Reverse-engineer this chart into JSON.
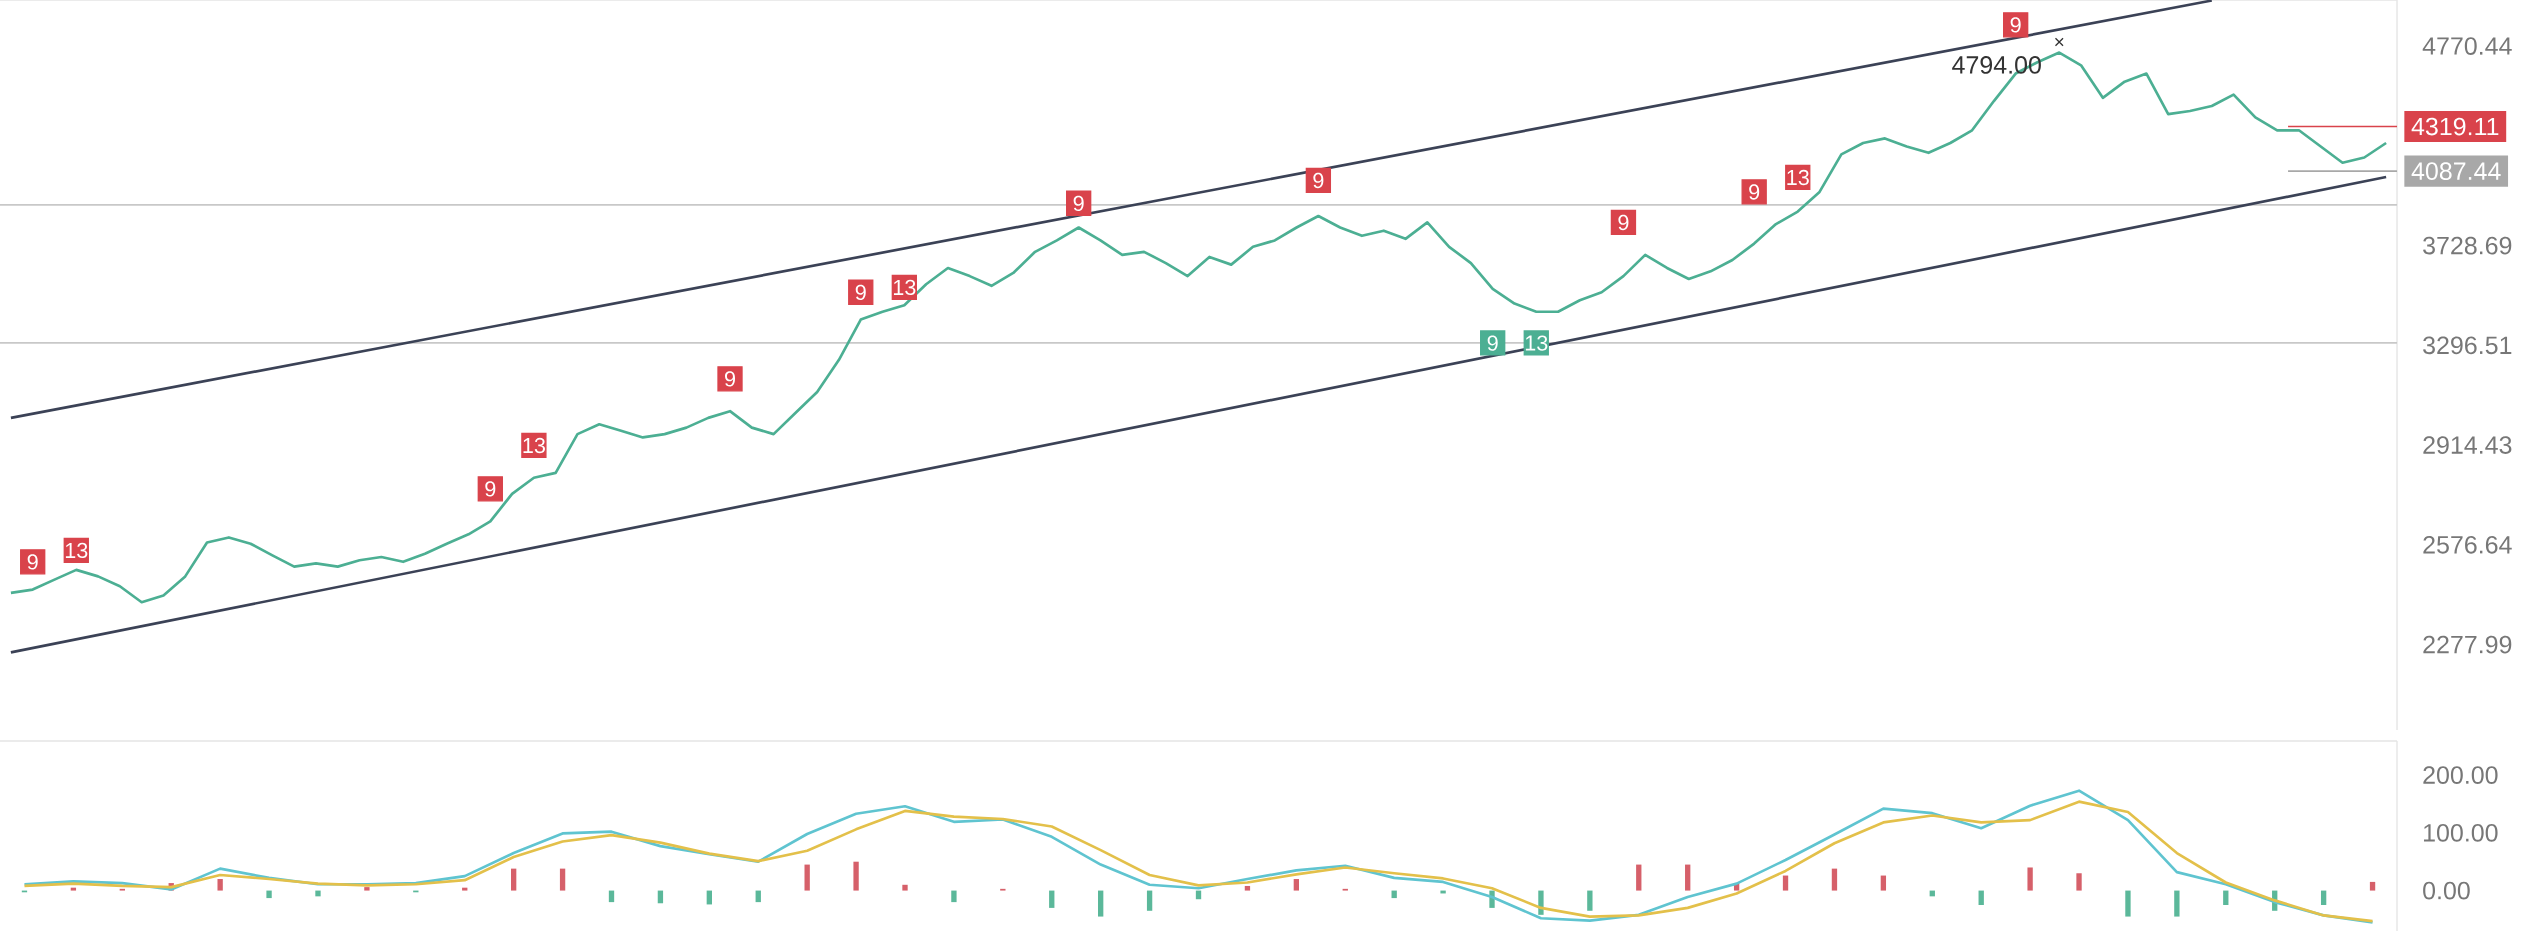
{
  "chart_data": [
    {
      "type": "line",
      "log": "y",
      "ylim": [
        2050,
        5050
      ],
      "tick_labels": "y",
      "categories": [
        null,
        null,
        null,
        null,
        null,
        null,
        null,
        null,
        null,
        null,
        null,
        null,
        null,
        null,
        null,
        null,
        null,
        null,
        null,
        null,
        null,
        null,
        null,
        null,
        null,
        null,
        null,
        null,
        null,
        null,
        null,
        null,
        null,
        null,
        null,
        null,
        null,
        null,
        null,
        null,
        null,
        null,
        null,
        null,
        null,
        null,
        null,
        null,
        null,
        null,
        null,
        null,
        null,
        null,
        null,
        null,
        null,
        null,
        null,
        null,
        null,
        null,
        null,
        null,
        null,
        null,
        null,
        null,
        null,
        null,
        null,
        null,
        null,
        null,
        null,
        null,
        null,
        null,
        null,
        null,
        null,
        null,
        null,
        null,
        null,
        null,
        null,
        null,
        null,
        null,
        null,
        null,
        null,
        null,
        null,
        null,
        null,
        null,
        null,
        null,
        null,
        null,
        null,
        null,
        null,
        null,
        null,
        null,
        null,
        null
      ],
      "yticks": [
        2277.99,
        2576.64,
        2914.43,
        3296.51,
        3728.69,
        4770.44
      ],
      "series": [
        {
          "color": "#4caf93",
          "values": [
            2428,
            2438,
            2468,
            2498,
            2478,
            2448,
            2400,
            2420,
            2478,
            2584,
            2600,
            2580,
            2543,
            2508,
            2518,
            2508,
            2528,
            2538,
            2523,
            2548,
            2580,
            2610,
            2652,
            2744,
            2799,
            2816,
            2954,
            2990,
            2966,
            2942,
            2954,
            2978,
            3014,
            3039,
            2978,
            2954,
            3032,
            3112,
            3238,
            3403,
            3436,
            3464,
            3555,
            3627,
            3591,
            3548,
            3605,
            3700,
            3753,
            3813,
            3753,
            3686,
            3700,
            3649,
            3591,
            3677,
            3642,
            3723,
            3753,
            3813,
            3868,
            3813,
            3774,
            3798,
            3760,
            3837,
            3723,
            3649,
            3535,
            3471,
            3436,
            3436,
            3485,
            3520,
            3591,
            3686,
            3627,
            3578,
            3612,
            3663,
            3738,
            3829,
            3889,
            3985,
            4173,
            4232,
            4256,
            4214,
            4181,
            4232,
            4299,
            4457,
            4611,
            4676,
            4732,
            4658,
            4475,
            4565,
            4611,
            4386,
            4403,
            4430,
            4493,
            4368,
            4299,
            4299,
            4214,
            4130,
            4157,
            4232
          ]
        },
        {
          "color": "#3b4256",
          "values": [
            3014,
            null,
            null,
            null,
            null,
            null,
            null,
            null,
            null,
            null,
            null,
            null,
            null,
            null,
            null,
            null,
            null,
            null,
            null,
            null,
            null,
            null,
            null,
            null,
            null,
            null,
            null,
            null,
            null,
            null,
            null,
            null,
            null,
            null,
            null,
            null,
            null,
            null,
            null,
            null,
            null,
            null,
            null,
            null,
            null,
            null,
            null,
            null,
            null,
            null,
            null,
            null,
            null,
            null,
            null,
            null,
            null,
            null,
            null,
            null,
            null,
            null,
            null,
            null,
            null,
            null,
            null,
            null,
            null,
            null,
            null,
            null,
            null,
            null,
            null,
            null,
            null,
            null,
            null,
            null,
            null,
            null,
            null,
            null,
            null,
            null,
            null,
            null,
            null,
            null,
            null,
            null,
            null,
            null,
            null,
            null,
            null,
            null,
            null,
            null,
            null,
            5046,
            null,
            null,
            null,
            null,
            null,
            null,
            null,
            null
          ]
        },
        {
          "color": "#3b4256",
          "values": [
            2256,
            null,
            null,
            null,
            null,
            null,
            null,
            null,
            null,
            null,
            null,
            null,
            null,
            null,
            null,
            null,
            null,
            null,
            null,
            null,
            null,
            null,
            null,
            null,
            null,
            null,
            null,
            null,
            null,
            null,
            null,
            null,
            null,
            null,
            null,
            null,
            null,
            null,
            null,
            null,
            null,
            null,
            null,
            null,
            null,
            null,
            null,
            null,
            null,
            null,
            null,
            null,
            null,
            null,
            null,
            null,
            null,
            null,
            null,
            null,
            null,
            null,
            null,
            null,
            null,
            null,
            null,
            null,
            null,
            null,
            null,
            null,
            null,
            null,
            null,
            null,
            null,
            null,
            null,
            null,
            null,
            null,
            null,
            null,
            null,
            null,
            null,
            null,
            null,
            null,
            null,
            null,
            null,
            null,
            null,
            null,
            null,
            null,
            null,
            null,
            null,
            null,
            null,
            null,
            null,
            null,
            null,
            null,
            null,
            4058
          ]
        },
        {
          "type": "scatter",
          "color": "#d9434b",
          "marker": "square",
          "values": [
            null,
            2523,
            null,
            2559,
            null,
            null,
            null,
            null,
            null,
            null,
            null,
            null,
            null,
            null,
            null,
            null,
            null,
            null,
            null,
            null,
            null,
            null,
            2761,
            null,
            2913,
            null,
            null,
            null,
            null,
            null,
            null,
            null,
            null,
            3163,
            null,
            null,
            null,
            null,
            null,
            3520,
            null,
            3541,
            null,
            null,
            null,
            null,
            null,
            null,
            null,
            3929,
            null,
            null,
            null,
            null,
            null,
            null,
            null,
            null,
            null,
            null,
            4041,
            null,
            null,
            null,
            null,
            null,
            null,
            null,
            null,
            null,
            null,
            null,
            null,
            null,
            3837,
            null,
            null,
            null,
            null,
            null,
            3985,
            null,
            4056,
            null,
            null,
            null,
            null,
            null,
            null,
            null,
            null,
            null,
            4897,
            null,
            null,
            null,
            null,
            null,
            null,
            null,
            null,
            null,
            null,
            null,
            null,
            null,
            null,
            null,
            null,
            null
          ]
        },
        {
          "type": "scatter",
          "color": "#4caf93",
          "marker": "square",
          "values": [
            null,
            null,
            null,
            null,
            null,
            null,
            null,
            null,
            null,
            null,
            null,
            null,
            null,
            null,
            null,
            null,
            null,
            null,
            null,
            null,
            null,
            null,
            null,
            null,
            null,
            null,
            null,
            null,
            null,
            null,
            null,
            null,
            null,
            null,
            null,
            null,
            null,
            null,
            null,
            null,
            null,
            null,
            null,
            null,
            null,
            null,
            null,
            null,
            null,
            null,
            null,
            null,
            null,
            null,
            null,
            null,
            null,
            null,
            null,
            null,
            null,
            null,
            null,
            null,
            null,
            null,
            null,
            null,
            3306,
            null,
            3306,
            null,
            null,
            null,
            null,
            null,
            null,
            null,
            null,
            null,
            null,
            null,
            null,
            null,
            null,
            null,
            null,
            null,
            null,
            null,
            null,
            null,
            null,
            null,
            null,
            null,
            null,
            null,
            null,
            null,
            null,
            null,
            null,
            null,
            null,
            null,
            null,
            null,
            null,
            null
          ]
        },
        {
          "type": "scatter",
          "color": "#333333",
          "marker": "cross",
          "values": [
            null,
            null,
            null,
            null,
            null,
            null,
            null,
            null,
            null,
            null,
            null,
            null,
            null,
            null,
            null,
            null,
            null,
            null,
            null,
            null,
            null,
            null,
            null,
            null,
            null,
            null,
            null,
            null,
            null,
            null,
            null,
            null,
            null,
            null,
            null,
            null,
            null,
            null,
            null,
            null,
            null,
            null,
            null,
            null,
            null,
            null,
            null,
            null,
            null,
            null,
            null,
            null,
            null,
            null,
            null,
            null,
            null,
            null,
            null,
            null,
            null,
            null,
            null,
            null,
            null,
            null,
            null,
            null,
            null,
            null,
            null,
            null,
            null,
            null,
            null,
            null,
            null,
            null,
            null,
            null,
            null,
            null,
            null,
            null,
            null,
            null,
            null,
            null,
            null,
            null,
            null,
            null,
            null,
            null,
            4794,
            null,
            null,
            null,
            null,
            null,
            null,
            null,
            null,
            null,
            null,
            null,
            null,
            null,
            null,
            null
          ]
        }
      ],
      "annotations": [
        "9",
        "13",
        "9",
        "13",
        "9",
        "9",
        "13",
        "9",
        "9",
        "9",
        "9",
        "13",
        "9",
        "9",
        "13",
        "4794.00"
      ],
      "ref_lines": [
        {
          "axis": "y",
          "value": 3921,
          "color": "#c8c8c8"
        },
        {
          "axis": "y",
          "value": 3306,
          "color": "#c8c8c8"
        },
        {
          "axis": "y",
          "value": 4087.44,
          "label": "4087.44",
          "color": "#a8a8a8"
        },
        {
          "axis": "y",
          "value": 4319.11,
          "label": "4319.11",
          "color": "#d9434b"
        }
      ]
    },
    {
      "type": "bar",
      "ylim": [
        -70,
        259
      ],
      "tick_labels": "y",
      "yticks": [
        {
          "value": 0,
          "label": "0.00"
        },
        {
          "value": 100,
          "label": "100.00"
        },
        {
          "value": 200,
          "label": "200.00"
        }
      ],
      "categories": [
        null,
        null,
        null,
        null,
        null,
        null,
        null,
        null,
        null,
        null,
        null,
        null,
        null,
        null,
        null,
        null,
        null,
        null,
        null,
        null,
        null,
        null,
        null,
        null,
        null,
        null,
        null,
        null,
        null,
        null,
        null,
        null,
        null,
        null,
        null,
        null,
        null,
        null,
        null,
        null,
        null,
        null,
        null,
        null,
        null,
        null,
        null,
        null,
        null
      ],
      "series": [
        {
          "type": "bar",
          "values": [
            -3,
            5,
            3,
            13,
            20,
            -13,
            -10,
            6,
            -3,
            5,
            38,
            38,
            -20,
            -22,
            -24,
            -20,
            45,
            50,
            10,
            -20,
            3,
            -30,
            -45,
            -35,
            -15,
            8,
            20,
            3,
            -13,
            -5,
            -30,
            -42,
            -35,
            45,
            45,
            13,
            26,
            38,
            26,
            -10,
            -25,
            40,
            30,
            -45,
            -45,
            -25,
            -35,
            -25,
            15
          ],
          "colors": [
            "#5bb89a",
            "#d6606a",
            "#d6606a",
            "#d6606a",
            "#d6606a",
            "#5bb89a",
            "#5bb89a",
            "#d6606a",
            "#5bb89a",
            "#d6606a",
            "#d6606a",
            "#d6606a",
            "#5bb89a",
            "#5bb89a",
            "#5bb89a",
            "#5bb89a",
            "#d6606a",
            "#d6606a",
            "#d6606a",
            "#5bb89a",
            "#d6606a",
            "#5bb89a",
            "#5bb89a",
            "#5bb89a",
            "#5bb89a",
            "#d6606a",
            "#d6606a",
            "#d6606a",
            "#5bb89a",
            "#5bb89a",
            "#5bb89a",
            "#5bb89a",
            "#5bb89a",
            "#d6606a",
            "#d6606a",
            "#d6606a",
            "#d6606a",
            "#d6606a",
            "#d6606a",
            "#5bb89a",
            "#5bb89a",
            "#d6606a",
            "#d6606a",
            "#5bb89a",
            "#5bb89a",
            "#5bb89a",
            "#5bb89a",
            "#5bb89a",
            "#d6606a"
          ]
        },
        {
          "type": "line",
          "color": "#5fc4d0",
          "values": [
            11,
            16,
            13,
            2,
            38,
            22,
            11,
            11,
            13,
            25,
            65,
            99,
            102,
            77,
            63,
            50,
            98,
            133,
            146,
            119,
            123,
            93,
            45,
            10,
            4,
            20,
            35,
            43,
            22,
            15,
            -11,
            -48,
            -52,
            -42,
            -11,
            12,
            53,
            97,
            142,
            134,
            108,
            147,
            173,
            122,
            32,
            11,
            -20,
            -43,
            -55
          ]
        },
        {
          "type": "line",
          "color": "#e3c04a",
          "values": [
            8,
            12,
            8,
            6,
            27,
            20,
            12,
            9,
            11,
            18,
            58,
            85,
            96,
            83,
            64,
            51,
            69,
            106,
            138,
            128,
            124,
            111,
            70,
            27,
            9,
            14,
            28,
            40,
            30,
            21,
            4,
            -30,
            -45,
            -43,
            -30,
            -5,
            34,
            82,
            118,
            130,
            118,
            122,
            154,
            136,
            65,
            14,
            -17,
            -43,
            -53
          ]
        }
      ]
    }
  ]
}
